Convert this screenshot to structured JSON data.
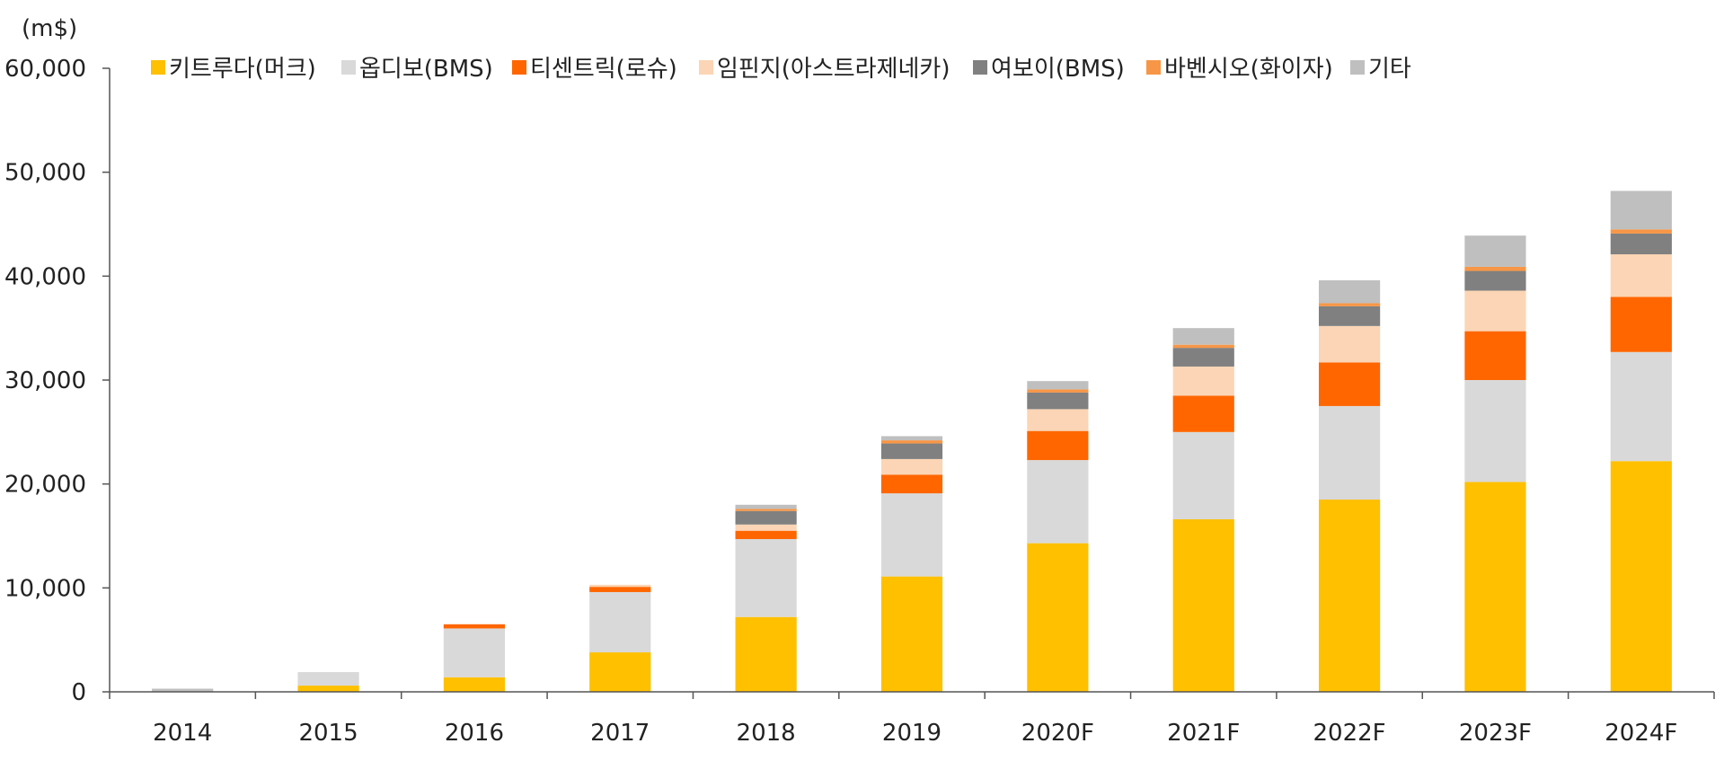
{
  "chart_data": {
    "type": "bar",
    "stacked": true,
    "unit_label": "(m$)",
    "title": "",
    "xlabel": "",
    "ylabel": "",
    "ylim": [
      0,
      60000
    ],
    "yticks": [
      0,
      10000,
      20000,
      30000,
      40000,
      50000,
      60000
    ],
    "ytick_labels": [
      "0",
      "10,000",
      "20,000",
      "30,000",
      "40,000",
      "50,000",
      "60,000"
    ],
    "grid": false,
    "legend_position": "top",
    "categories": [
      "2014",
      "2015",
      "2016",
      "2017",
      "2018",
      "2019",
      "2020F",
      "2021F",
      "2022F",
      "2023F",
      "2024F"
    ],
    "series": [
      {
        "name": "키트루다(머크)",
        "color": "#FFC000",
        "values": [
          0,
          600,
          1400,
          3800,
          7200,
          11100,
          14300,
          16600,
          18500,
          20200,
          22200
        ]
      },
      {
        "name": "옵디보(BMS)",
        "color": "#D9D9D9",
        "values": [
          0,
          1300,
          4700,
          5800,
          7500,
          8000,
          8000,
          8400,
          9000,
          9800,
          10500
        ]
      },
      {
        "name": "티센트릭(로슈)",
        "color": "#FF6600",
        "values": [
          0,
          0,
          400,
          500,
          800,
          1800,
          2800,
          3500,
          4200,
          4700,
          5300
        ]
      },
      {
        "name": "임핀지(아스트라제네카)",
        "color": "#FBD5B5",
        "values": [
          0,
          0,
          0,
          200,
          600,
          1500,
          2100,
          2800,
          3500,
          3900,
          4100
        ]
      },
      {
        "name": "여보이(BMS)",
        "color": "#808080",
        "values": [
          0,
          0,
          0,
          0,
          1300,
          1500,
          1600,
          1800,
          1900,
          1900,
          2000
        ]
      },
      {
        "name": "바벤시오(화이자)",
        "color": "#F79646",
        "values": [
          0,
          0,
          0,
          0,
          200,
          300,
          300,
          300,
          300,
          400,
          400
        ]
      },
      {
        "name": "기타",
        "color": "#BFBFBF",
        "values": [
          300,
          0,
          0,
          0,
          400,
          400,
          800,
          1600,
          2200,
          3000,
          3700
        ]
      }
    ]
  }
}
